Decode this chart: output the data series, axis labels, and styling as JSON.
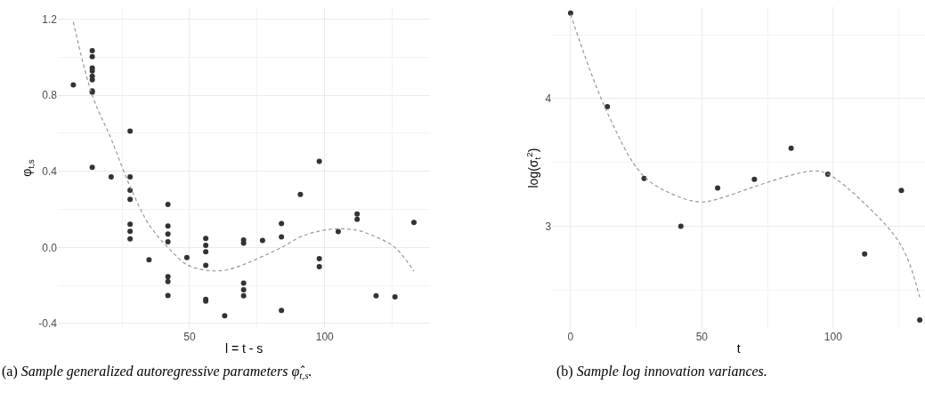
{
  "chart_data": [
    {
      "type": "scatter",
      "xlabel": "l = t - s",
      "ylabel": "φ$_{t,s}$",
      "xlim": [
        1.3,
        139
      ],
      "ylim": [
        -0.429,
        1.263
      ],
      "xticks": [
        50,
        100
      ],
      "yticks": [
        {
          "value": -0.4,
          "label": "-0.4"
        },
        {
          "value": 0,
          "label": "0.0"
        },
        0.4,
        0.8,
        1.2
      ],
      "grid": true,
      "marker": "circle",
      "annotations": [
        "(a) Sample generalized autoregressive parameters φ̂$_{t,s}$."
      ],
      "series": [
        {
          "color": "#333333",
          "x": [
            7,
            14,
            14,
            14,
            14,
            14,
            14,
            14,
            14,
            14,
            21,
            28,
            28,
            28,
            28,
            28,
            28,
            28,
            35,
            42,
            42,
            42,
            42,
            42,
            42,
            42,
            49,
            56,
            56,
            56,
            56,
            56,
            56,
            63,
            70,
            70,
            70,
            70,
            70,
            77,
            84,
            84,
            84,
            91,
            98,
            98,
            98,
            105,
            112,
            112,
            119,
            126,
            133
          ],
          "values": [
            0.854,
            1.034,
            1.002,
            0.943,
            0.928,
            0.9,
            0.881,
            0.822,
            0.815,
            0.421,
            0.371,
            0.611,
            0.371,
            0.301,
            0.253,
            0.122,
            0.084,
            0.045,
            -0.065,
            0.226,
            0.112,
            0.07,
            0.03,
            -0.154,
            -0.179,
            -0.253,
            -0.053,
            0.047,
            0.011,
            -0.023,
            -0.094,
            -0.273,
            -0.282,
            -0.359,
            0.039,
            0.023,
            -0.187,
            -0.223,
            -0.254,
            0.037,
            0.125,
            0.055,
            -0.331,
            0.278,
            0.452,
            -0.059,
            -0.101,
            0.083,
            0.176,
            0.148,
            -0.254,
            -0.26,
            0.131
          ]
        },
        {
          "type": "line",
          "marker": "none",
          "color": "#999999",
          "line_style": "dashed",
          "x": [
            7,
            14,
            21,
            28,
            35,
            42,
            49,
            56,
            63,
            70,
            77,
            84,
            91,
            98,
            105,
            112,
            119,
            126,
            133
          ],
          "values": [
            1.185,
            0.8,
            0.57,
            0.32,
            0.12,
            0.0,
            -0.09,
            -0.12,
            -0.12,
            -0.09,
            -0.047,
            0.0,
            0.055,
            0.086,
            0.098,
            0.09,
            0.055,
            0.0,
            -0.125
          ]
        }
      ]
    },
    {
      "type": "scatter",
      "xlabel": "t",
      "ylabel": "log(σ$_{t}$$^{2}$)",
      "xlim": [
        -7,
        135
      ],
      "ylim": [
        2.194,
        4.718
      ],
      "xticks": [
        0,
        50,
        100
      ],
      "yticks": [
        3,
        4
      ],
      "grid": true,
      "marker": "circle",
      "annotations": [
        "(b) Sample log innovation variances."
      ],
      "series": [
        {
          "color": "#333333",
          "x": [
            0,
            14,
            28,
            42,
            56,
            70,
            84,
            98,
            112,
            126,
            133
          ],
          "values": [
            4.671,
            3.938,
            3.374,
            3.0,
            3.299,
            3.367,
            3.611,
            3.408,
            2.782,
            3.28,
            2.265
          ]
        },
        {
          "type": "line",
          "marker": "none",
          "color": "#999999",
          "line_style": "dashed",
          "x": [
            0,
            14,
            28,
            42,
            50,
            56,
            70,
            84,
            93,
            98,
            112,
            126,
            133
          ],
          "values": [
            4.66,
            3.89,
            3.39,
            3.225,
            3.19,
            3.213,
            3.31,
            3.4,
            3.434,
            3.41,
            3.178,
            2.846,
            2.443
          ]
        }
      ]
    }
  ]
}
